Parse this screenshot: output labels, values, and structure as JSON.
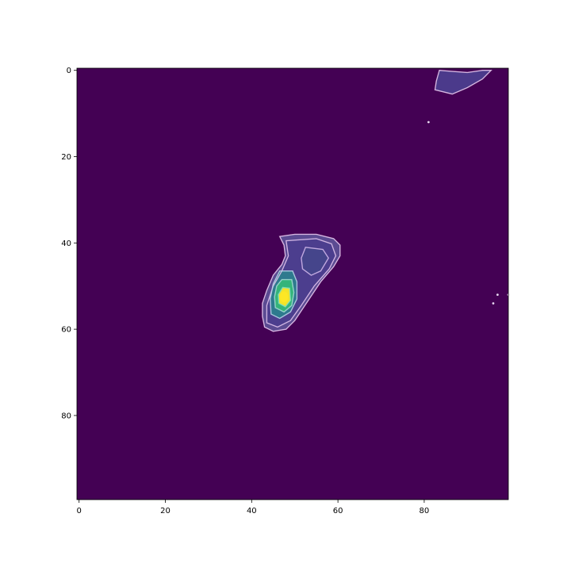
{
  "chart_data": {
    "type": "heatmap",
    "title": "",
    "xlabel": "",
    "ylabel": "",
    "xlim": [
      0,
      99
    ],
    "ylim": [
      99,
      0
    ],
    "y_axis_inverted": true,
    "colormap": "viridis",
    "background_color": "#440154",
    "contour_color": "#e8c8ec",
    "grid": false,
    "legend": "none",
    "x_ticks": [
      0,
      20,
      40,
      60,
      80
    ],
    "y_ticks": [
      0,
      20,
      40,
      60,
      80
    ],
    "x_tick_labels": [
      "0",
      "20",
      "40",
      "60",
      "80"
    ],
    "y_tick_labels": [
      "0",
      "20",
      "40",
      "60",
      "80"
    ],
    "blobs": [
      {
        "name": "central-blob",
        "peak": [
          47.5,
          52.5
        ],
        "contours": [
          [
            [
              46.5,
              38.5
            ],
            [
              50,
              38
            ],
            [
              55,
              38
            ],
            [
              59,
              39
            ],
            [
              60.5,
              40.5
            ],
            [
              60.5,
              43
            ],
            [
              59,
              45.5
            ],
            [
              56,
              49
            ],
            [
              54,
              52
            ],
            [
              52,
              55
            ],
            [
              50,
              58
            ],
            [
              48,
              60
            ],
            [
              45,
              60.5
            ],
            [
              43,
              59.5
            ],
            [
              42.5,
              57
            ],
            [
              42.5,
              54
            ],
            [
              43.5,
              51
            ],
            [
              45,
              47.5
            ],
            [
              47,
              45
            ],
            [
              47.8,
              43
            ],
            [
              47.5,
              40.5
            ],
            [
              46.5,
              38.5
            ]
          ],
          [
            [
              48,
              39.5
            ],
            [
              55,
              39
            ],
            [
              58.5,
              40.2
            ],
            [
              59.5,
              43
            ],
            [
              58,
              46
            ],
            [
              54.5,
              50
            ],
            [
              51.5,
              54.5
            ],
            [
              49,
              58
            ],
            [
              46,
              59.5
            ],
            [
              43.5,
              58.5
            ],
            [
              43.5,
              54.5
            ],
            [
              45,
              50
            ],
            [
              47,
              46.5
            ],
            [
              48.5,
              43
            ],
            [
              48,
              39.5
            ]
          ],
          [
            [
              52.5,
              41
            ],
            [
              56.5,
              41.5
            ],
            [
              57.8,
              43.5
            ],
            [
              56,
              46.5
            ],
            [
              53.8,
              47.5
            ],
            [
              51.8,
              46
            ],
            [
              51.5,
              43.5
            ],
            [
              52.5,
              41
            ]
          ],
          [
            [
              46.5,
              46.5
            ],
            [
              49.5,
              46.5
            ],
            [
              50.5,
              49
            ],
            [
              50.5,
              53
            ],
            [
              49,
              56
            ],
            [
              46.5,
              57.5
            ],
            [
              44.5,
              56.5
            ],
            [
              44.3,
              53
            ],
            [
              45,
              49.5
            ],
            [
              46.5,
              46.5
            ]
          ],
          [
            [
              47,
              48.5
            ],
            [
              49.3,
              48.5
            ],
            [
              49.8,
              51.5
            ],
            [
              49.3,
              54.5
            ],
            [
              47.5,
              56
            ],
            [
              45.5,
              55
            ],
            [
              45.3,
              52.5
            ],
            [
              45.8,
              50
            ],
            [
              47,
              48.5
            ]
          ],
          [
            [
              47.2,
              50.3
            ],
            [
              48.8,
              50.5
            ],
            [
              49,
              53.3
            ],
            [
              47.8,
              54.8
            ],
            [
              46.3,
              54
            ],
            [
              46.2,
              52
            ],
            [
              47.2,
              50.3
            ]
          ]
        ],
        "contour_colors": [
          "#d4b6e0",
          "#c8aee0",
          "#cdb4e8",
          "#b6d0e6",
          "#a0d8d0",
          "#7fdcc0"
        ],
        "blob_fills": [
          "#5d4f96",
          "#4c3d8e",
          "#44468b",
          "#2c7d8e",
          "#35b779",
          "#fde725"
        ]
      },
      {
        "name": "top-right-blob",
        "contours": [
          [
            [
              83.5,
              0
            ],
            [
              86,
              0.2
            ],
            [
              90,
              0.5
            ],
            [
              93.5,
              0
            ],
            [
              95.5,
              0
            ],
            [
              93.5,
              2
            ],
            [
              90,
              4
            ],
            [
              86.5,
              5.5
            ],
            [
              82.5,
              4.5
            ],
            [
              82.8,
              2.5
            ],
            [
              83.5,
              0
            ]
          ]
        ],
        "contour_colors": [
          "#d4b6e0"
        ],
        "blob_fills": [
          "#4c3d8e"
        ]
      }
    ],
    "specks": [
      [
        81,
        12
      ],
      [
        97,
        52
      ],
      [
        96,
        54
      ],
      [
        99.5,
        52
      ]
    ]
  }
}
